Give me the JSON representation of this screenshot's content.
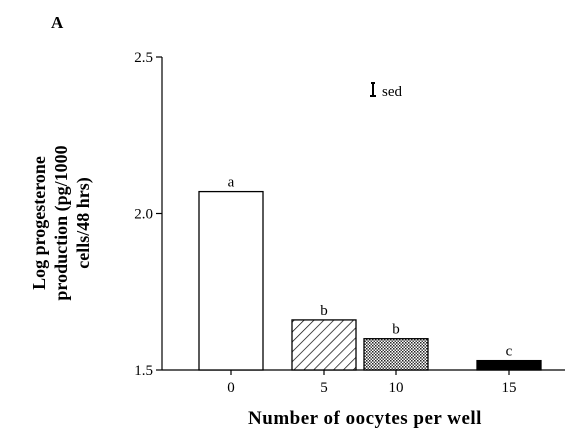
{
  "panel_label": "A",
  "chart_data": {
    "type": "bar",
    "title": "",
    "xlabel": "Number of oocytes per well",
    "ylabel_lines": [
      "Log progesterone",
      "production (pg/1000",
      "cells/48 hrs)"
    ],
    "categories": [
      "0",
      "5",
      "10",
      "15"
    ],
    "values": [
      2.07,
      1.66,
      1.6,
      1.53
    ],
    "significance_letters": [
      "a",
      "b",
      "b",
      "c"
    ],
    "bar_fills": [
      "none",
      "diagonal-hatch",
      "dotted-stipple",
      "solid-black"
    ],
    "ylim": [
      1.5,
      2.5
    ],
    "yticks": [
      1.5,
      2.0,
      2.5
    ],
    "ytick_labels": [
      "1.5",
      "2.0",
      "2.5"
    ],
    "grid": false,
    "legend": {
      "position": "top-right",
      "label": "sed",
      "icon": "error-bar-icon"
    }
  }
}
